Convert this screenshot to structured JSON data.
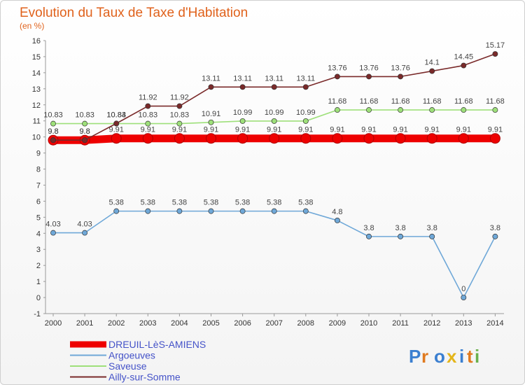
{
  "chart_data": {
    "type": "line",
    "title": "Evolution du Taux de Taxe d'Habitation",
    "subtitle": "(en %)",
    "x": [
      "2000",
      "2001",
      "2002",
      "2003",
      "2004",
      "2005",
      "2006",
      "2007",
      "2008",
      "2009",
      "2010",
      "2011",
      "2012",
      "2013",
      "2014"
    ],
    "ylim": [
      -1,
      16
    ],
    "yticks": [
      -1,
      0,
      1,
      2,
      3,
      4,
      5,
      6,
      7,
      8,
      9,
      10,
      11,
      12,
      13,
      14,
      15,
      16
    ],
    "grid": false,
    "legend_position": "bottom-left",
    "series": [
      {
        "name": "DREUIL-LèS-AMIENS",
        "color": "#ee0000",
        "values": [
          9.8,
          9.8,
          9.91,
          9.91,
          9.91,
          9.91,
          9.91,
          9.91,
          9.91,
          9.91,
          9.91,
          9.91,
          9.91,
          9.91,
          9.91
        ],
        "labels": [
          "9.8",
          "9.8",
          "9.91",
          "9.91",
          "9.91",
          "9.91",
          "9.91",
          "9.91",
          "9.91",
          "9.91",
          "9.91",
          "9.91",
          "9.91",
          "9.91",
          "9.91"
        ]
      },
      {
        "name": "Argoeuves",
        "color": "#6fa8d8",
        "values": [
          4.03,
          4.03,
          5.38,
          5.38,
          5.38,
          5.38,
          5.38,
          5.38,
          5.38,
          4.8,
          3.8,
          3.8,
          3.8,
          0,
          3.8
        ],
        "labels": [
          "4.03",
          "4.03",
          "5.38",
          "5.38",
          "5.38",
          "5.38",
          "5.38",
          "5.38",
          "5.38",
          "4.8",
          "3.8",
          "3.8",
          "3.8",
          "0",
          "3.8"
        ]
      },
      {
        "name": "Saveuse",
        "color": "#9ee07a",
        "values": [
          10.83,
          10.83,
          10.83,
          10.83,
          10.83,
          10.91,
          10.99,
          10.99,
          10.99,
          11.68,
          11.68,
          11.68,
          11.68,
          11.68,
          11.68
        ],
        "labels": [
          "10.83",
          "10.83",
          "10.83",
          "10.83",
          "10.83",
          "10.91",
          "10.99",
          "10.99",
          "10.99",
          "11.68",
          "11.68",
          "11.68",
          "11.68",
          "11.68",
          "11.68"
        ]
      },
      {
        "name": "Ailly-sur-Somme",
        "color": "#7a2a2a",
        "values": [
          9.8,
          9.8,
          10.84,
          11.92,
          11.92,
          13.11,
          13.11,
          13.11,
          13.11,
          13.76,
          13.76,
          13.76,
          14.1,
          14.45,
          15.17
        ],
        "labels": [
          "9.8",
          "9.8",
          "10.84",
          "11.92",
          "11.92",
          "13.11",
          "13.11",
          "13.11",
          "13.11",
          "13.76",
          "13.76",
          "13.76",
          "14.1",
          "14.45",
          "15.17"
        ]
      }
    ]
  },
  "logo": {
    "text": "Proxiti",
    "colors": [
      "#3b7fd0",
      "#e07a1f",
      "#3b7fd0",
      "#e4b51a",
      "#3b7fd0",
      "#e07a1f",
      "#6ab04c"
    ]
  }
}
